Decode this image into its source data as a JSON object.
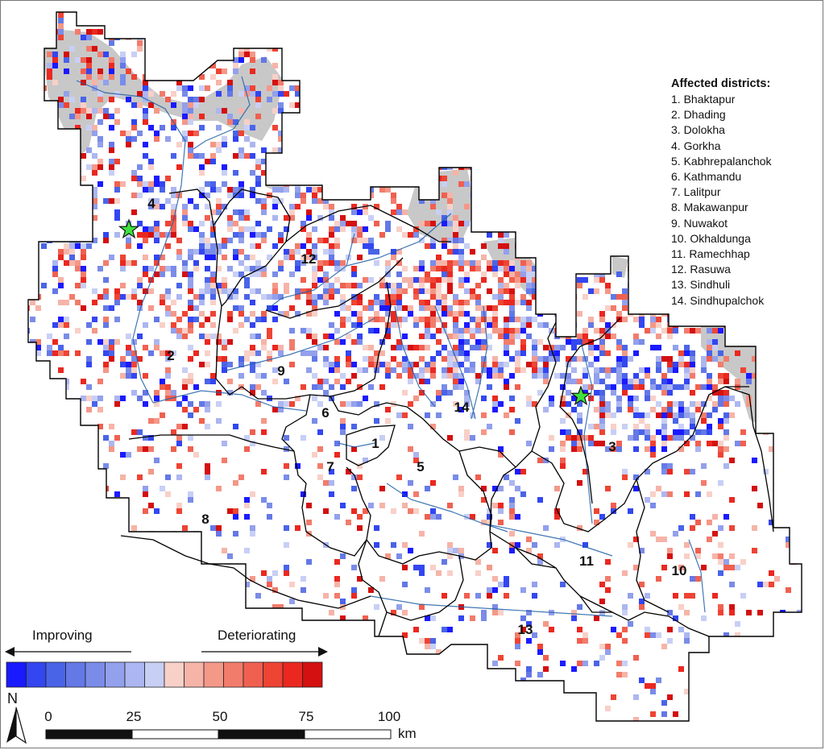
{
  "legend": {
    "title": "Affected districts:",
    "districts": [
      "1. Bhaktapur",
      "2. Dhading",
      "3. Dolokha",
      "4. Gorkha",
      "5. Kabhrepalanchok",
      "6. Kathmandu",
      "7. Lalitpur",
      "8. Makawanpur",
      "9. Nuwakot",
      "10. Okhaldunga",
      "11. Ramechhap",
      "12. Rasuwa",
      "13. Sindhuli",
      "14. Sindhupalchok"
    ]
  },
  "district_labels": [
    "1",
    "2",
    "3",
    "4",
    "5",
    "6",
    "7",
    "8",
    "9",
    "10",
    "11",
    "12",
    "13",
    "14"
  ],
  "trend": {
    "improving_label": "Improving",
    "deteriorating_label": "Deteriorating",
    "colors": [
      "#1a1aff",
      "#3346f0",
      "#4a64e8",
      "#6478e6",
      "#7a8ce8",
      "#93a0ec",
      "#acb6f0",
      "#c8cff5",
      "#f8d0c8",
      "#f6b4a8",
      "#f49888",
      "#f27c6c",
      "#f06050",
      "#ee4434",
      "#ea2820",
      "#d41010"
    ]
  },
  "scale_bar": {
    "ticks": [
      "0",
      "25",
      "50",
      "75",
      "100"
    ],
    "unit": "km"
  },
  "north_arrow": {
    "label": "N"
  },
  "colors": {
    "district_boundary": "#000000",
    "river": "#1f5fa8",
    "snow_area": "#c8c8c8",
    "epicenter_star": "#3ee23e"
  },
  "markers": [
    {
      "name": "epicenter-star",
      "icon": "star-icon"
    },
    {
      "name": "epicenter-star",
      "icon": "star-icon"
    }
  ]
}
